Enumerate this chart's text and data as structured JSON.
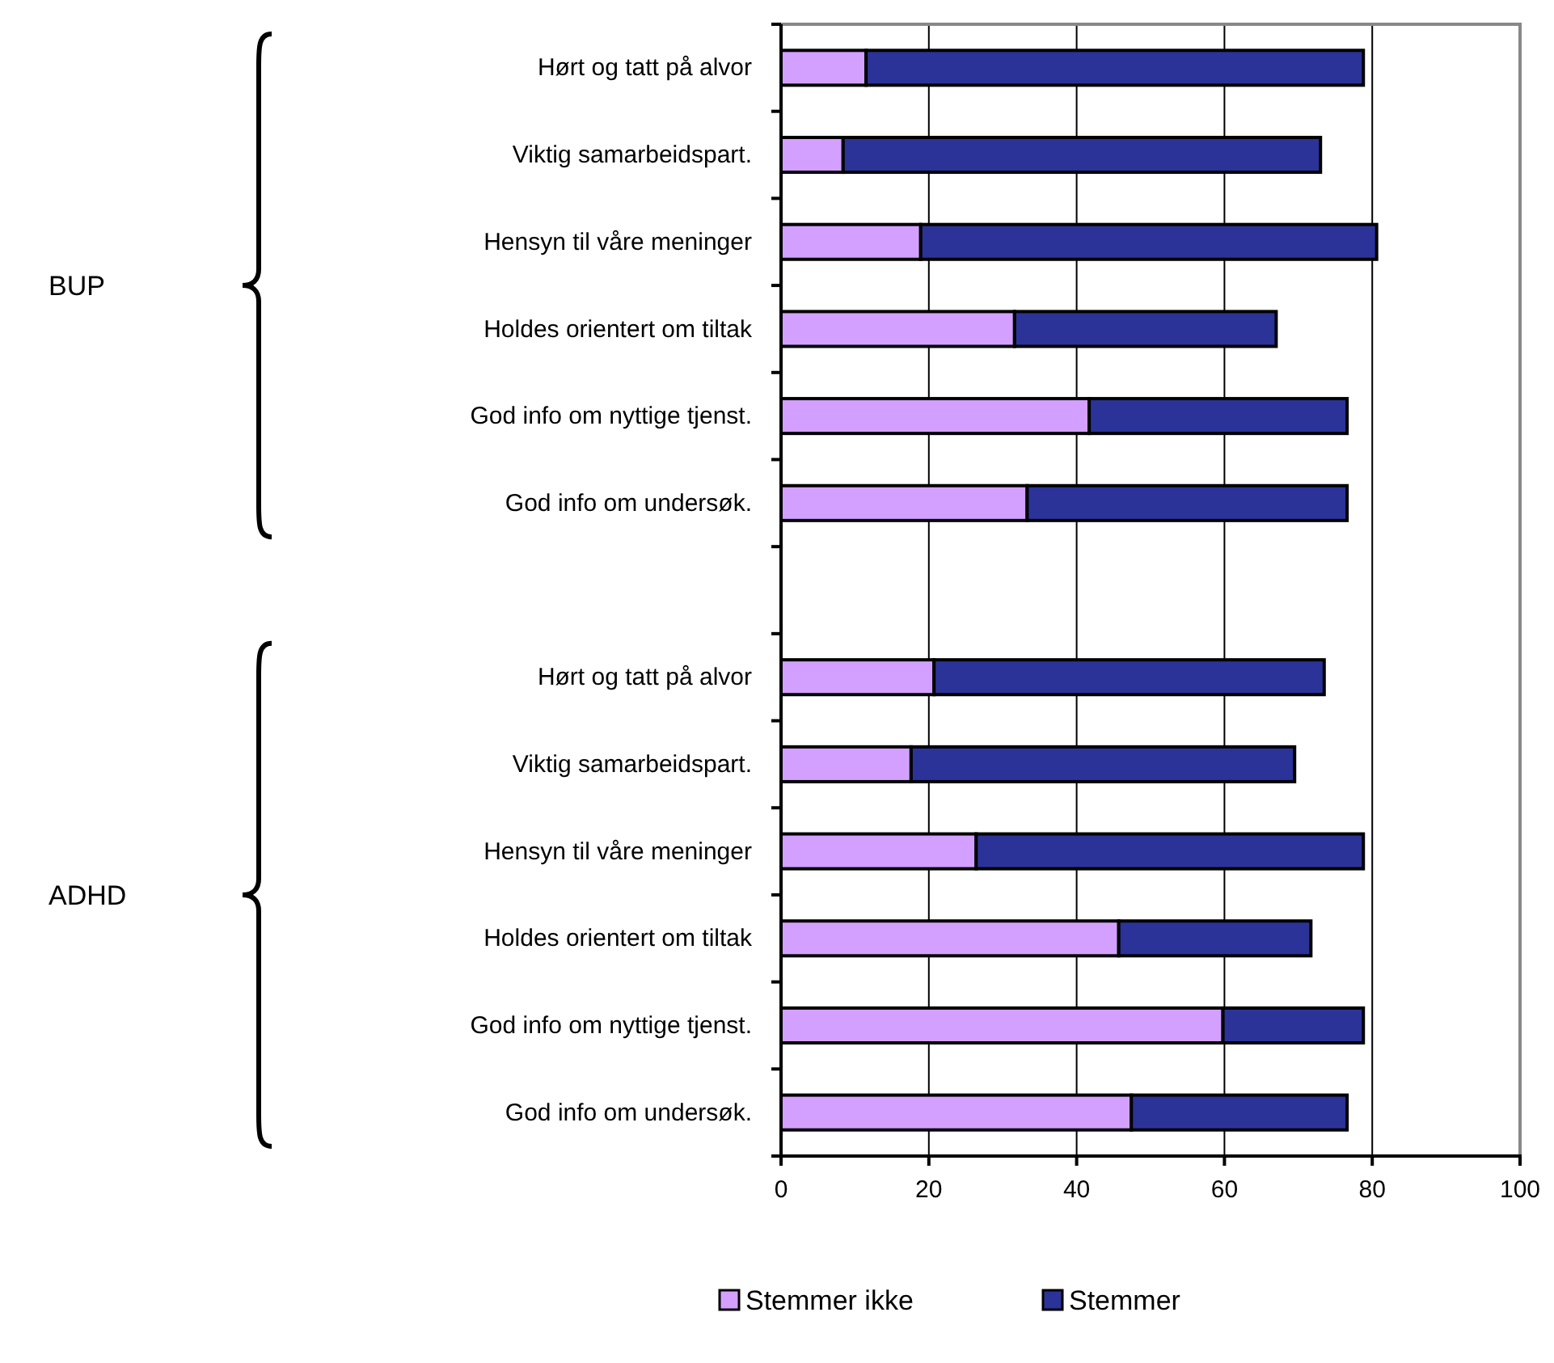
{
  "chart_data": {
    "type": "bar",
    "orientation": "horizontal",
    "stacked": true,
    "categories": [
      "Hørt og tatt på alvor",
      "Viktig samarbeidspart.",
      "Hensyn til våre meninger",
      "Holdes orientert om tiltak",
      "God info om nyttige tjenst.",
      "God info om undersøk.",
      null,
      "Hørt og tatt på alvor",
      "Viktig samarbeidspart.",
      "Hensyn til våre meninger",
      "Holdes orientert om tiltak",
      "God info om nyttige tjenst.",
      "God info om undersøk."
    ],
    "series": [
      {
        "name": "Stemmer ikke",
        "color": "#d4a0ff",
        "values": [
          11.5,
          8.4,
          18.9,
          31.6,
          41.7,
          33.3,
          null,
          20.7,
          17.6,
          26.4,
          45.7,
          59.8,
          47.4
        ]
      },
      {
        "name": "Stemmer",
        "color": "#2b3399",
        "values": [
          67.3,
          64.6,
          61.7,
          35.4,
          34.9,
          43.3,
          null,
          52.8,
          51.9,
          52.4,
          26,
          19,
          29.2
        ]
      }
    ],
    "xlim": [
      0,
      100
    ],
    "xticks": [
      0,
      20,
      40,
      60,
      80,
      100
    ],
    "grid": "x",
    "legend": "bottom",
    "annotations": [
      "BUP",
      "ADHD"
    ]
  }
}
